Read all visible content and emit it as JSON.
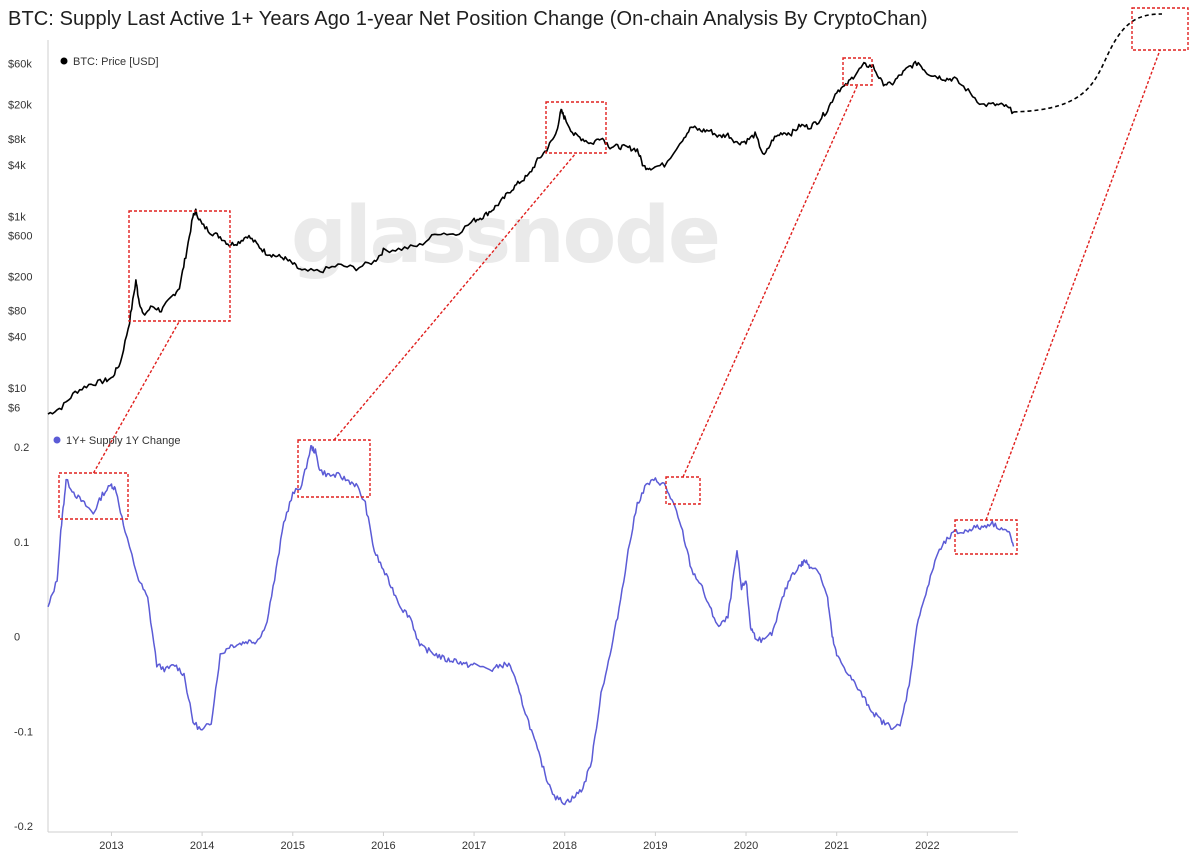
{
  "title": "BTC: Supply Last Active 1+ Years Ago 1-year Net Position Change (On-chain Analysis By CryptoChan)",
  "watermark": "glassnode",
  "colors": {
    "price": "#000000",
    "supply": "#5b5bd6",
    "highlight": "#e0201e",
    "grid": "#e8e8e8",
    "axis": "#cfcfcf"
  },
  "chart_data": [
    {
      "type": "line",
      "legend": "BTC: Price [USD]",
      "yscale": "log",
      "yticks": [
        "$60k",
        "$20k",
        "$8k",
        "$4k",
        "$1k",
        "$600",
        "$200",
        "$80",
        "$40",
        "$10",
        "$6"
      ],
      "ytick_values": [
        60000,
        20000,
        8000,
        4000,
        1000,
        600,
        200,
        80,
        40,
        10,
        6
      ],
      "ylim": [
        4.5,
        70000
      ],
      "series": [
        {
          "name": "BTC: Price [USD]",
          "x": [
            2012.3,
            2012.45,
            2012.6,
            2012.75,
            2012.9,
            2013.0,
            2013.1,
            2013.2,
            2013.27,
            2013.3,
            2013.35,
            2013.45,
            2013.55,
            2013.65,
            2013.75,
            2013.82,
            2013.9,
            2013.93,
            2014.0,
            2014.1,
            2014.2,
            2014.3,
            2014.4,
            2014.5,
            2014.6,
            2014.7,
            2014.8,
            2014.9,
            2015.0,
            2015.1,
            2015.3,
            2015.5,
            2015.7,
            2015.9,
            2016.0,
            2016.2,
            2016.4,
            2016.6,
            2016.8,
            2017.0,
            2017.1,
            2017.2,
            2017.3,
            2017.4,
            2017.5,
            2017.6,
            2017.7,
            2017.8,
            2017.9,
            2017.96,
            2018.0,
            2018.1,
            2018.2,
            2018.3,
            2018.4,
            2018.5,
            2018.6,
            2018.7,
            2018.8,
            2018.87,
            2018.95,
            2019.1,
            2019.3,
            2019.4,
            2019.5,
            2019.6,
            2019.7,
            2019.8,
            2019.9,
            2020.0,
            2020.1,
            2020.2,
            2020.3,
            2020.4,
            2020.5,
            2020.6,
            2020.7,
            2020.8,
            2020.9,
            2021.0,
            2021.1,
            2021.2,
            2021.3,
            2021.4,
            2021.5,
            2021.6,
            2021.7,
            2021.8,
            2021.9,
            2022.0,
            2022.1,
            2022.2,
            2022.3,
            2022.45,
            2022.6,
            2022.75,
            2022.85,
            2022.95
          ],
          "values": [
            5,
            6,
            9,
            11,
            12,
            13,
            20,
            60,
            180,
            110,
            70,
            90,
            80,
            110,
            150,
            350,
            1000,
            1150,
            800,
            650,
            580,
            470,
            500,
            600,
            480,
            380,
            350,
            330,
            280,
            230,
            230,
            270,
            250,
            300,
            400,
            420,
            460,
            650,
            620,
            900,
            1000,
            1200,
            1500,
            2000,
            2500,
            3000,
            4500,
            6000,
            9000,
            17000,
            14000,
            9000,
            8000,
            7000,
            8500,
            6500,
            6500,
            6300,
            6000,
            3800,
            3700,
            4000,
            8000,
            11000,
            10000,
            10000,
            8500,
            9000,
            7200,
            7500,
            9000,
            5000,
            8000,
            9500,
            9300,
            11500,
            11000,
            13000,
            17500,
            29000,
            33000,
            45000,
            58000,
            56000,
            36000,
            34000,
            44000,
            55000,
            62000,
            47000,
            43000,
            40000,
            40000,
            29000,
            20000,
            20000,
            19500,
            16500
          ]
        }
      ]
    },
    {
      "type": "line",
      "legend": "1Y+ Supply 1Y Change",
      "yticks": [
        "0.2",
        "0.1",
        "0",
        "-0.1",
        "-0.2"
      ],
      "ytick_values": [
        0.2,
        0.1,
        0,
        -0.1,
        -0.2
      ],
      "ylim": [
        -0.2,
        0.2
      ],
      "xticks": [
        "2013",
        "2014",
        "2015",
        "2016",
        "2017",
        "2018",
        "2019",
        "2020",
        "2021",
        "2022"
      ],
      "xtick_values": [
        2013,
        2014,
        2015,
        2016,
        2017,
        2018,
        2019,
        2020,
        2021,
        2022
      ],
      "xlim": [
        2012.3,
        2023.0
      ],
      "series": [
        {
          "name": "1Y+ Supply 1Y Change",
          "x": [
            2012.3,
            2012.4,
            2012.45,
            2012.5,
            2012.6,
            2012.7,
            2012.8,
            2012.9,
            2013.0,
            2013.05,
            2013.15,
            2013.3,
            2013.4,
            2013.5,
            2013.6,
            2013.7,
            2013.8,
            2013.9,
            2014.0,
            2014.1,
            2014.2,
            2014.3,
            2014.4,
            2014.5,
            2014.6,
            2014.7,
            2014.8,
            2014.9,
            2015.0,
            2015.1,
            2015.2,
            2015.25,
            2015.3,
            2015.4,
            2015.5,
            2015.6,
            2015.7,
            2015.8,
            2015.9,
            2016.0,
            2016.1,
            2016.2,
            2016.3,
            2016.4,
            2016.5,
            2016.6,
            2016.7,
            2016.8,
            2016.9,
            2017.0,
            2017.2,
            2017.3,
            2017.4,
            2017.5,
            2017.6,
            2017.7,
            2017.8,
            2017.9,
            2018.0,
            2018.1,
            2018.2,
            2018.3,
            2018.4,
            2018.5,
            2018.6,
            2018.7,
            2018.8,
            2018.9,
            2019.0,
            2019.1,
            2019.2,
            2019.3,
            2019.4,
            2019.5,
            2019.6,
            2019.7,
            2019.8,
            2019.9,
            2019.95,
            2020.0,
            2020.05,
            2020.1,
            2020.2,
            2020.3,
            2020.4,
            2020.5,
            2020.6,
            2020.65,
            2020.7,
            2020.8,
            2020.9,
            2020.95,
            2021.0,
            2021.1,
            2021.2,
            2021.3,
            2021.4,
            2021.5,
            2021.6,
            2021.7,
            2021.8,
            2021.9,
            2022.0,
            2022.1,
            2022.2,
            2022.3,
            2022.4,
            2022.5,
            2022.6,
            2022.7,
            2022.8,
            2022.9,
            2022.95
          ],
          "values": [
            0.03,
            0.06,
            0.12,
            0.165,
            0.15,
            0.14,
            0.13,
            0.15,
            0.16,
            0.155,
            0.11,
            0.06,
            0.04,
            -0.03,
            -0.035,
            -0.03,
            -0.04,
            -0.09,
            -0.1,
            -0.09,
            -0.02,
            -0.01,
            -0.008,
            -0.005,
            -0.005,
            0.01,
            0.06,
            0.12,
            0.15,
            0.16,
            0.2,
            0.195,
            0.175,
            0.17,
            0.17,
            0.165,
            0.16,
            0.14,
            0.09,
            0.07,
            0.05,
            0.03,
            0.02,
            -0.01,
            -0.015,
            -0.02,
            -0.025,
            -0.025,
            -0.03,
            -0.03,
            -0.035,
            -0.03,
            -0.03,
            -0.06,
            -0.09,
            -0.12,
            -0.15,
            -0.17,
            -0.175,
            -0.17,
            -0.16,
            -0.13,
            -0.06,
            -0.02,
            0.03,
            0.09,
            0.14,
            0.16,
            0.165,
            0.16,
            0.14,
            0.11,
            0.07,
            0.055,
            0.03,
            0.01,
            0.02,
            0.09,
            0.05,
            0.06,
            0.01,
            0.0,
            -0.005,
            0.005,
            0.04,
            0.065,
            0.075,
            0.08,
            0.075,
            0.07,
            0.04,
            0.0,
            -0.02,
            -0.035,
            -0.05,
            -0.065,
            -0.08,
            -0.09,
            -0.095,
            -0.095,
            -0.05,
            0.02,
            0.05,
            0.085,
            0.1,
            0.11,
            0.11,
            0.115,
            0.115,
            0.12,
            0.115,
            0.11,
            0.095
          ]
        }
      ]
    }
  ]
}
